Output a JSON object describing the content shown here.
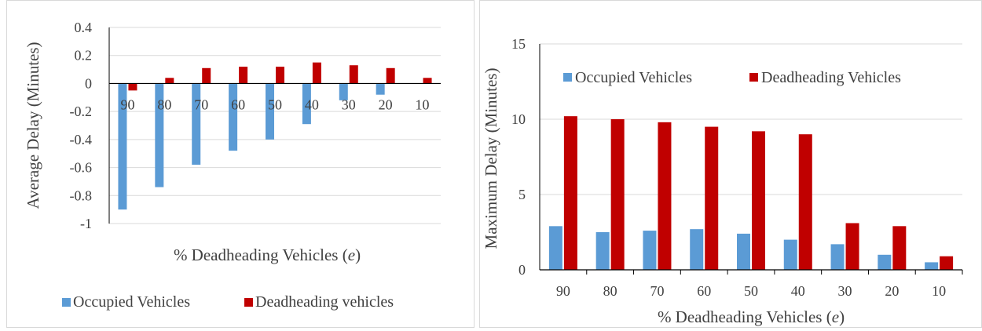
{
  "colors": {
    "occupied": "#5B9BD5",
    "deadheading": "#C00000",
    "grid": "#d9d9d9",
    "axis": "#000000",
    "text": "#404040"
  },
  "chart_data": [
    {
      "type": "bar",
      "categories": [
        "90",
        "80",
        "70",
        "60",
        "50",
        "40",
        "30",
        "20",
        "10"
      ],
      "series": [
        {
          "name": "Occupied Vehicles",
          "values": [
            -0.9,
            -0.74,
            -0.58,
            -0.48,
            -0.4,
            -0.29,
            -0.12,
            -0.08,
            0.0
          ]
        },
        {
          "name": "Deadheading vehicles",
          "values": [
            -0.05,
            0.04,
            0.11,
            0.12,
            0.12,
            0.15,
            0.13,
            0.11,
            0.04
          ]
        }
      ],
      "xlabel": "% Deadheading Vehicles (",
      "xlabel_var": "e",
      "xlabel_end": ")",
      "ylabel": "Average Delay  (Minutes)",
      "ylim": [
        -1,
        0.4
      ],
      "yticks": [
        "-1",
        "-0.8",
        "-0.6",
        "-0.4",
        "-0.2",
        "0",
        "0.2",
        "0.4"
      ],
      "grid": true,
      "legend_position": "bottom"
    },
    {
      "type": "bar",
      "categories": [
        "90",
        "80",
        "70",
        "60",
        "50",
        "40",
        "30",
        "20",
        "10"
      ],
      "series": [
        {
          "name": "Occupied Vehicles",
          "values": [
            2.9,
            2.5,
            2.6,
            2.7,
            2.4,
            2.0,
            1.7,
            1.0,
            0.5
          ]
        },
        {
          "name": "Deadheading Vehicles",
          "values": [
            10.2,
            10.0,
            9.8,
            9.5,
            9.2,
            9.0,
            3.1,
            2.9,
            0.9
          ]
        }
      ],
      "xlabel": "% Deadheading Vehicles (",
      "xlabel_var": "e",
      "xlabel_end": ")",
      "ylabel": "Maximum Delay  (Minutes)",
      "ylim": [
        0,
        15
      ],
      "yticks": [
        "0",
        "5",
        "10",
        "15"
      ],
      "grid": true,
      "legend_position": "top"
    }
  ]
}
